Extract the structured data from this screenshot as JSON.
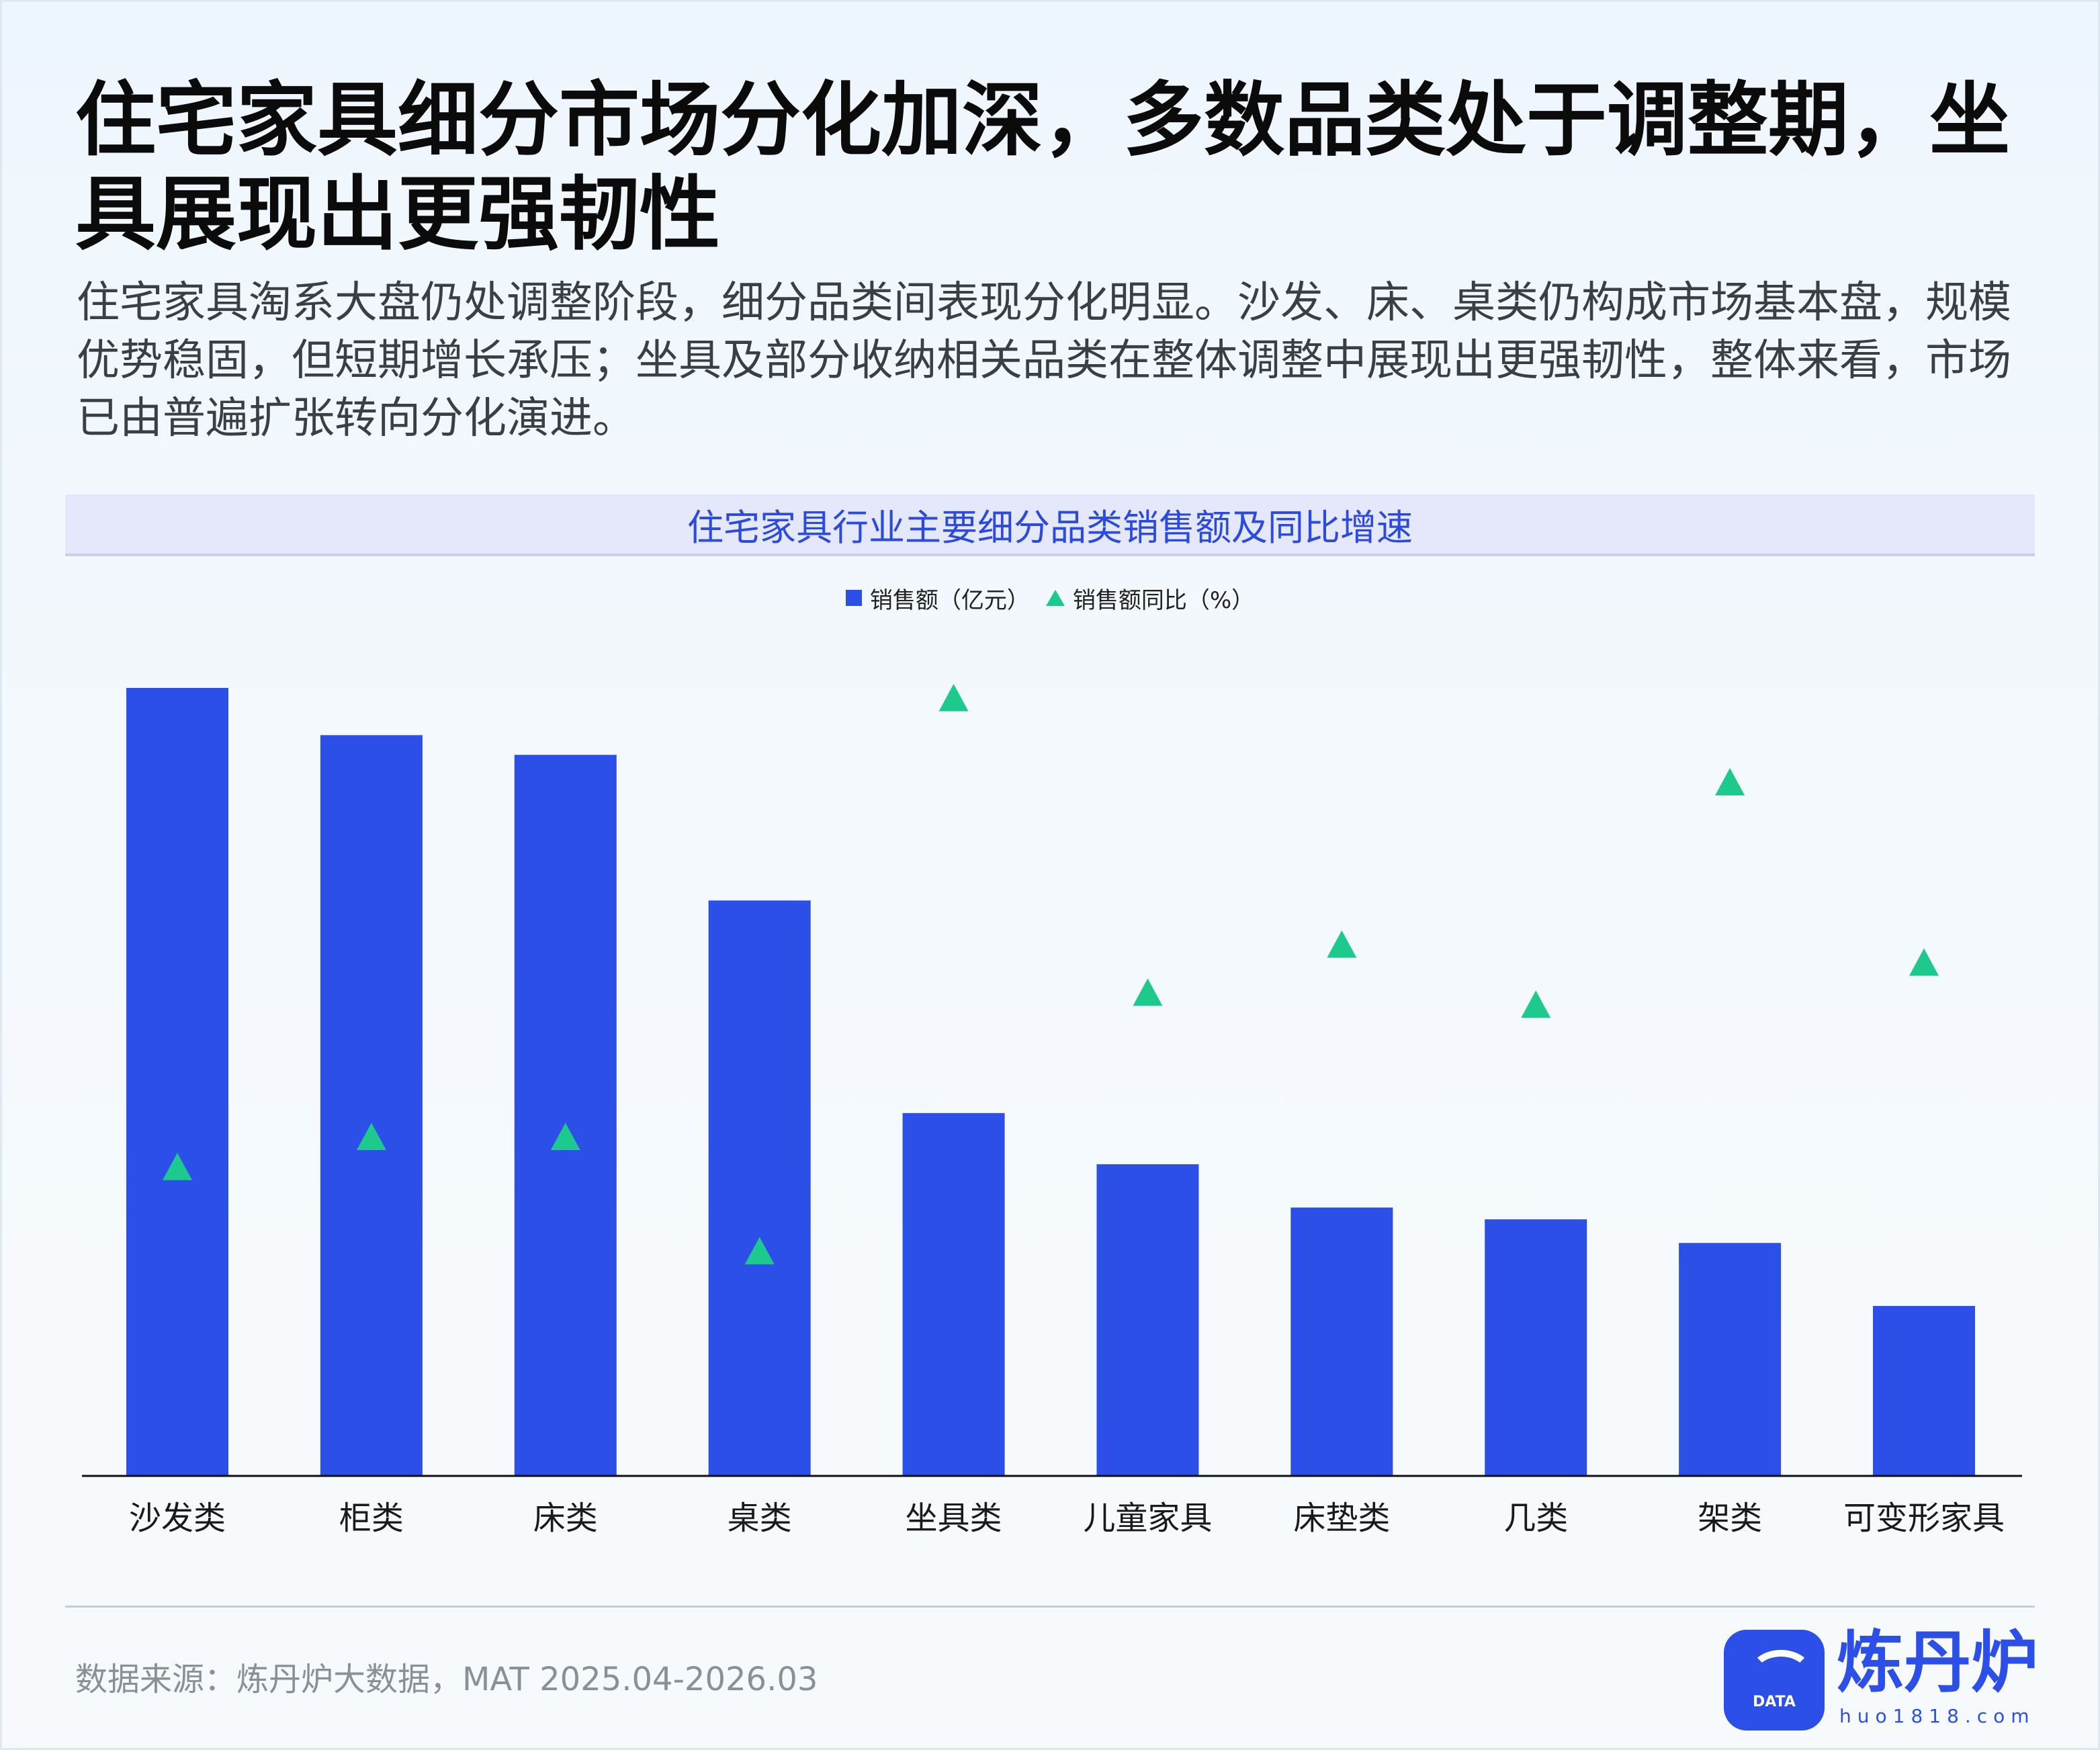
{
  "title": "住宅家具细分市场分化加深，多数品类处于调整期，坐具展现出更强韧性",
  "subtitle": "住宅家具淘系大盘仍处调整阶段，细分品类间表现分化明显。沙发、床、桌类仍构成市场基本盘，规模优势稳固，但短期增长承压；坐具及部分收纳相关品类在整体调整中展现出更强韧性，整体来看，市场已由普遍扩张转向分化演进。",
  "chart_data": {
    "type": "bar",
    "title": "住宅家具行业主要细分品类销售额及同比增速",
    "categories": [
      "沙发类",
      "柜类",
      "床类",
      "桌类",
      "坐具类",
      "儿童家具",
      "床垫类",
      "几类",
      "架类",
      "可变形家具"
    ],
    "series": [
      {
        "name": "销售额（亿元）",
        "type": "bar",
        "color": "#2c4fe8",
        "values": [
          100,
          94,
          91.5,
          73,
          46,
          39.5,
          34,
          32.5,
          29.5,
          21.5
        ]
      },
      {
        "name": "销售额同比（%）",
        "type": "scatter",
        "marker": "triangle",
        "color": "#1ec98d",
        "values": [
          22,
          27,
          27,
          8,
          100,
          51,
          59,
          49,
          86,
          56
        ]
      }
    ],
    "legend": "top-center",
    "grid": false,
    "y_axis_visible": false
  },
  "legend": {
    "bar_label": "销售额（亿元）",
    "marker_label": "销售额同比（%）"
  },
  "source": "数据来源：炼丹炉大数据，MAT 2025.04-2026.03",
  "logo": {
    "name": "炼丹炉",
    "url": "huo1818.com",
    "badge": "DATA"
  }
}
